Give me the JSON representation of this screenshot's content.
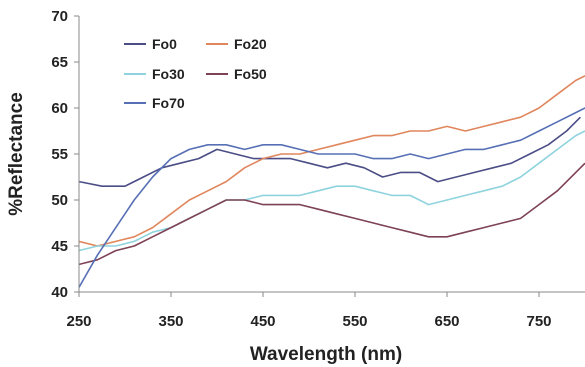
{
  "chart_data": {
    "type": "line",
    "xlabel": "Wavelength (nm)",
    "ylabel": "%Reflectance",
    "xlim": [
      250,
      800
    ],
    "ylim": [
      40,
      70
    ],
    "xticks": [
      250,
      350,
      450,
      550,
      650,
      750
    ],
    "yticks": [
      40,
      45,
      50,
      55,
      60,
      65,
      70
    ],
    "grid": false,
    "legend_position": "top-left",
    "series": [
      {
        "name": "Fo0",
        "color": "#4b4d86",
        "x": [
          250,
          275,
          300,
          320,
          340,
          360,
          380,
          400,
          420,
          440,
          460,
          480,
          500,
          520,
          540,
          560,
          580,
          600,
          620,
          640,
          660,
          680,
          700,
          720,
          740,
          760,
          780,
          795
        ],
        "y": [
          52,
          51.5,
          51.5,
          52.5,
          53.5,
          54,
          54.5,
          55.5,
          55,
          54.5,
          54.5,
          54.5,
          54,
          53.5,
          54,
          53.5,
          52.5,
          53,
          53,
          52,
          52.5,
          53,
          53.5,
          54,
          55,
          56,
          57.5,
          59
        ]
      },
      {
        "name": "Fo20",
        "color": "#e0865c",
        "x": [
          250,
          270,
          290,
          310,
          330,
          350,
          370,
          390,
          410,
          430,
          450,
          470,
          490,
          510,
          530,
          550,
          570,
          590,
          610,
          630,
          650,
          670,
          690,
          710,
          730,
          750,
          770,
          790,
          800
        ],
        "y": [
          45.5,
          45,
          45.5,
          46,
          47,
          48.5,
          50,
          51,
          52,
          53.5,
          54.5,
          55,
          55,
          55.5,
          56,
          56.5,
          57,
          57,
          57.5,
          57.5,
          58,
          57.5,
          58,
          58.5,
          59,
          60,
          61.5,
          63,
          63.5
        ]
      },
      {
        "name": "Fo30",
        "color": "#8fd3de",
        "x": [
          250,
          270,
          290,
          310,
          330,
          350,
          370,
          390,
          410,
          430,
          450,
          470,
          490,
          510,
          530,
          550,
          570,
          590,
          610,
          630,
          650,
          670,
          690,
          710,
          730,
          750,
          770,
          790,
          800
        ],
        "y": [
          44.5,
          45,
          45,
          45.5,
          46.5,
          47,
          48,
          49,
          50,
          50,
          50.5,
          50.5,
          50.5,
          51,
          51.5,
          51.5,
          51,
          50.5,
          50.5,
          49.5,
          50,
          50.5,
          51,
          51.5,
          52.5,
          54,
          55.5,
          57,
          57.5
        ]
      },
      {
        "name": "Fo50",
        "color": "#7d4255",
        "x": [
          250,
          270,
          290,
          310,
          330,
          350,
          370,
          390,
          410,
          430,
          450,
          470,
          490,
          510,
          530,
          550,
          570,
          590,
          610,
          630,
          650,
          670,
          690,
          710,
          730,
          750,
          770,
          790,
          800
        ],
        "y": [
          43,
          43.5,
          44.5,
          45,
          46,
          47,
          48,
          49,
          50,
          50,
          49.5,
          49.5,
          49.5,
          49,
          48.5,
          48,
          47.5,
          47,
          46.5,
          46,
          46,
          46.5,
          47,
          47.5,
          48,
          49.5,
          51,
          53,
          54
        ]
      },
      {
        "name": "Fo70",
        "color": "#5770b5",
        "x": [
          250,
          270,
          290,
          310,
          330,
          350,
          370,
          390,
          410,
          430,
          450,
          470,
          490,
          510,
          530,
          550,
          570,
          590,
          610,
          630,
          650,
          670,
          690,
          710,
          730,
          750,
          770,
          790,
          800
        ],
        "y": [
          40.5,
          44,
          47,
          50,
          52.5,
          54.5,
          55.5,
          56,
          56,
          55.5,
          56,
          56,
          55.5,
          55,
          55,
          55,
          54.5,
          54.5,
          55,
          54.5,
          55,
          55.5,
          55.5,
          56,
          56.5,
          57.5,
          58.5,
          59.5,
          60
        ]
      }
    ]
  }
}
